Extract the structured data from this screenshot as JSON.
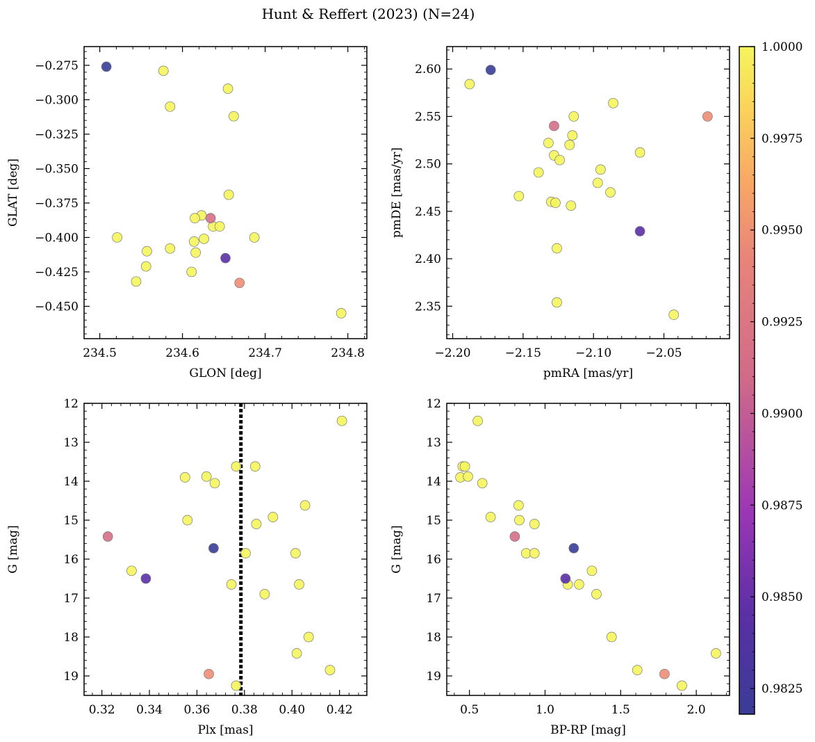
{
  "chart_data": {
    "title": "Hunt & Reffert (2023) (N=24)",
    "colorbar": {
      "range": [
        0.9818,
        1.0
      ],
      "ticks": [
        0.9825,
        0.985,
        0.9875,
        0.99,
        0.9925,
        0.995,
        0.9975,
        1.0
      ],
      "tick_labels": [
        "0.9825",
        "0.9850",
        "0.9875",
        "0.9900",
        "0.9925",
        "0.9950",
        "0.9975",
        "1.0000"
      ],
      "colormap": "plasma"
    },
    "charts": [
      {
        "type": "scatter",
        "xlabel": "GLON [deg]",
        "ylabel": "GLAT [deg]",
        "xlim": [
          234.481,
          234.823
        ],
        "ylim": [
          -0.4735,
          -0.2614
        ],
        "xticks": [
          234.5,
          234.6,
          234.7,
          234.8
        ],
        "xtick_labels": [
          "234.5",
          "234.6",
          "234.7",
          "234.8"
        ],
        "yticks": [
          -0.275,
          -0.3,
          -0.325,
          -0.35,
          -0.375,
          -0.4,
          -0.425,
          -0.45
        ],
        "ytick_labels": [
          "−0.275",
          "−0.300",
          "−0.325",
          "−0.350",
          "−0.375",
          "−0.400",
          "−0.425",
          "−0.450"
        ],
        "y_inverted": false,
        "points": [
          {
            "x": 234.508,
            "y": -0.276,
            "c": 0.9818
          },
          {
            "x": 234.577,
            "y": -0.279,
            "c": 1.0
          },
          {
            "x": 234.655,
            "y": -0.292,
            "c": 1.0
          },
          {
            "x": 234.585,
            "y": -0.305,
            "c": 1.0
          },
          {
            "x": 234.662,
            "y": -0.312,
            "c": 1.0
          },
          {
            "x": 234.656,
            "y": -0.369,
            "c": 1.0
          },
          {
            "x": 234.623,
            "y": -0.384,
            "c": 1.0
          },
          {
            "x": 234.615,
            "y": -0.386,
            "c": 1.0
          },
          {
            "x": 234.634,
            "y": -0.386,
            "c": 0.9915
          },
          {
            "x": 234.637,
            "y": -0.392,
            "c": 1.0
          },
          {
            "x": 234.645,
            "y": -0.392,
            "c": 1.0
          },
          {
            "x": 234.521,
            "y": -0.4,
            "c": 1.0
          },
          {
            "x": 234.687,
            "y": -0.4,
            "c": 1.0
          },
          {
            "x": 234.626,
            "y": -0.401,
            "c": 1.0
          },
          {
            "x": 234.614,
            "y": -0.403,
            "c": 1.0
          },
          {
            "x": 234.585,
            "y": -0.408,
            "c": 1.0
          },
          {
            "x": 234.557,
            "y": -0.41,
            "c": 1.0
          },
          {
            "x": 234.616,
            "y": -0.411,
            "c": 1.0
          },
          {
            "x": 234.652,
            "y": -0.415,
            "c": 0.9845
          },
          {
            "x": 234.556,
            "y": -0.421,
            "c": 1.0
          },
          {
            "x": 234.611,
            "y": -0.425,
            "c": 1.0
          },
          {
            "x": 234.544,
            "y": -0.432,
            "c": 1.0
          },
          {
            "x": 234.669,
            "y": -0.433,
            "c": 0.9948
          },
          {
            "x": 234.792,
            "y": -0.455,
            "c": 1.0
          }
        ]
      },
      {
        "type": "scatter",
        "xlabel": "pmRA [mas/yr]",
        "ylabel": "pmDE [mas/yr]",
        "xlim": [
          -2.2042,
          -2.0034
        ],
        "ylim": [
          2.3158,
          2.6236
        ],
        "xticks": [
          -2.2,
          -2.15,
          -2.1,
          -2.05
        ],
        "xtick_labels": [
          "−2.20",
          "−2.15",
          "−2.10",
          "−2.05"
        ],
        "yticks": [
          2.35,
          2.4,
          2.45,
          2.5,
          2.55,
          2.6
        ],
        "ytick_labels": [
          "2.35",
          "2.40",
          "2.45",
          "2.50",
          "2.55",
          "2.60"
        ],
        "y_inverted": false,
        "points": [
          {
            "x": -2.173,
            "y": 2.599,
            "c": 0.9818
          },
          {
            "x": -2.188,
            "y": 2.584,
            "c": 1.0
          },
          {
            "x": -2.086,
            "y": 2.564,
            "c": 1.0
          },
          {
            "x": -2.114,
            "y": 2.55,
            "c": 1.0
          },
          {
            "x": -2.019,
            "y": 2.55,
            "c": 0.9948
          },
          {
            "x": -2.128,
            "y": 2.54,
            "c": 0.9915
          },
          {
            "x": -2.115,
            "y": 2.53,
            "c": 1.0
          },
          {
            "x": -2.132,
            "y": 2.522,
            "c": 1.0
          },
          {
            "x": -2.117,
            "y": 2.52,
            "c": 1.0
          },
          {
            "x": -2.067,
            "y": 2.512,
            "c": 1.0
          },
          {
            "x": -2.128,
            "y": 2.509,
            "c": 1.0
          },
          {
            "x": -2.124,
            "y": 2.504,
            "c": 1.0
          },
          {
            "x": -2.095,
            "y": 2.494,
            "c": 1.0
          },
          {
            "x": -2.139,
            "y": 2.491,
            "c": 1.0
          },
          {
            "x": -2.097,
            "y": 2.48,
            "c": 1.0
          },
          {
            "x": -2.088,
            "y": 2.47,
            "c": 1.0
          },
          {
            "x": -2.153,
            "y": 2.466,
            "c": 1.0
          },
          {
            "x": -2.13,
            "y": 2.46,
            "c": 1.0
          },
          {
            "x": -2.127,
            "y": 2.459,
            "c": 1.0
          },
          {
            "x": -2.116,
            "y": 2.456,
            "c": 1.0
          },
          {
            "x": -2.067,
            "y": 2.429,
            "c": 0.9845
          },
          {
            "x": -2.126,
            "y": 2.411,
            "c": 1.0
          },
          {
            "x": -2.126,
            "y": 2.354,
            "c": 1.0
          },
          {
            "x": -2.043,
            "y": 2.341,
            "c": 1.0
          }
        ]
      },
      {
        "type": "scatter",
        "xlabel": "Plx [mas]",
        "ylabel": "G [mag]",
        "xlim": [
          0.3125,
          0.4315
        ],
        "ylim": [
          19.5,
          12.0
        ],
        "xticks": [
          0.32,
          0.34,
          0.36,
          0.38,
          0.4,
          0.42
        ],
        "xtick_labels": [
          "0.32",
          "0.34",
          "0.36",
          "0.38",
          "0.40",
          "0.42"
        ],
        "yticks": [
          12,
          13,
          14,
          15,
          16,
          17,
          18,
          19
        ],
        "ytick_labels": [
          "12",
          "13",
          "14",
          "15",
          "16",
          "17",
          "18",
          "19"
        ],
        "y_inverted": true,
        "vline": {
          "x": 0.3785,
          "style": "dotted"
        },
        "points": [
          {
            "x": 0.421,
            "y": 12.45,
            "c": 1.0
          },
          {
            "x": 0.3765,
            "y": 13.62,
            "c": 1.0
          },
          {
            "x": 0.3845,
            "y": 13.62,
            "c": 1.0
          },
          {
            "x": 0.355,
            "y": 13.9,
            "c": 1.0
          },
          {
            "x": 0.364,
            "y": 13.88,
            "c": 1.0
          },
          {
            "x": 0.3675,
            "y": 14.05,
            "c": 1.0
          },
          {
            "x": 0.4055,
            "y": 14.62,
            "c": 1.0
          },
          {
            "x": 0.392,
            "y": 14.92,
            "c": 1.0
          },
          {
            "x": 0.356,
            "y": 15.0,
            "c": 1.0
          },
          {
            "x": 0.385,
            "y": 15.1,
            "c": 1.0
          },
          {
            "x": 0.3225,
            "y": 15.42,
            "c": 0.9915
          },
          {
            "x": 0.367,
            "y": 15.72,
            "c": 0.9818
          },
          {
            "x": 0.3805,
            "y": 15.85,
            "c": 1.0
          },
          {
            "x": 0.4015,
            "y": 15.85,
            "c": 1.0
          },
          {
            "x": 0.3325,
            "y": 16.3,
            "c": 1.0
          },
          {
            "x": 0.3385,
            "y": 16.5,
            "c": 0.9845
          },
          {
            "x": 0.3745,
            "y": 16.65,
            "c": 1.0
          },
          {
            "x": 0.403,
            "y": 16.65,
            "c": 1.0
          },
          {
            "x": 0.3885,
            "y": 16.9,
            "c": 1.0
          },
          {
            "x": 0.407,
            "y": 18.0,
            "c": 1.0
          },
          {
            "x": 0.402,
            "y": 18.42,
            "c": 1.0
          },
          {
            "x": 0.416,
            "y": 18.85,
            "c": 1.0
          },
          {
            "x": 0.365,
            "y": 18.95,
            "c": 0.9948
          },
          {
            "x": 0.3765,
            "y": 19.25,
            "c": 1.0
          }
        ]
      },
      {
        "type": "scatter",
        "xlabel": "BP-RP [mag]",
        "ylabel": "G [mag]",
        "xlim": [
          0.35,
          2.22
        ],
        "ylim": [
          19.5,
          12.0
        ],
        "xticks": [
          0.5,
          1.0,
          1.5,
          2.0
        ],
        "xtick_labels": [
          "0.5",
          "1.0",
          "1.5",
          "2.0"
        ],
        "yticks": [
          12,
          13,
          14,
          15,
          16,
          17,
          18,
          19
        ],
        "ytick_labels": [
          "12",
          "13",
          "14",
          "15",
          "16",
          "17",
          "18",
          "19"
        ],
        "y_inverted": true,
        "points": [
          {
            "x": 0.555,
            "y": 12.45,
            "c": 1.0
          },
          {
            "x": 0.455,
            "y": 13.62,
            "c": 1.0
          },
          {
            "x": 0.47,
            "y": 13.62,
            "c": 1.0
          },
          {
            "x": 0.44,
            "y": 13.9,
            "c": 1.0
          },
          {
            "x": 0.49,
            "y": 13.88,
            "c": 1.0
          },
          {
            "x": 0.585,
            "y": 14.05,
            "c": 1.0
          },
          {
            "x": 0.825,
            "y": 14.62,
            "c": 1.0
          },
          {
            "x": 0.64,
            "y": 14.92,
            "c": 1.0
          },
          {
            "x": 0.83,
            "y": 15.0,
            "c": 1.0
          },
          {
            "x": 0.93,
            "y": 15.1,
            "c": 1.0
          },
          {
            "x": 0.8,
            "y": 15.42,
            "c": 0.9915
          },
          {
            "x": 1.19,
            "y": 15.72,
            "c": 0.9818
          },
          {
            "x": 0.875,
            "y": 15.85,
            "c": 1.0
          },
          {
            "x": 0.93,
            "y": 15.85,
            "c": 1.0
          },
          {
            "x": 1.31,
            "y": 16.3,
            "c": 1.0
          },
          {
            "x": 1.135,
            "y": 16.5,
            "c": 0.9845
          },
          {
            "x": 1.15,
            "y": 16.65,
            "c": 1.0
          },
          {
            "x": 1.225,
            "y": 16.65,
            "c": 1.0
          },
          {
            "x": 1.34,
            "y": 16.9,
            "c": 1.0
          },
          {
            "x": 1.44,
            "y": 18.0,
            "c": 1.0
          },
          {
            "x": 2.13,
            "y": 18.42,
            "c": 1.0
          },
          {
            "x": 1.61,
            "y": 18.85,
            "c": 1.0
          },
          {
            "x": 1.79,
            "y": 18.95,
            "c": 0.9948
          },
          {
            "x": 1.905,
            "y": 19.25,
            "c": 1.0
          }
        ]
      }
    ]
  }
}
